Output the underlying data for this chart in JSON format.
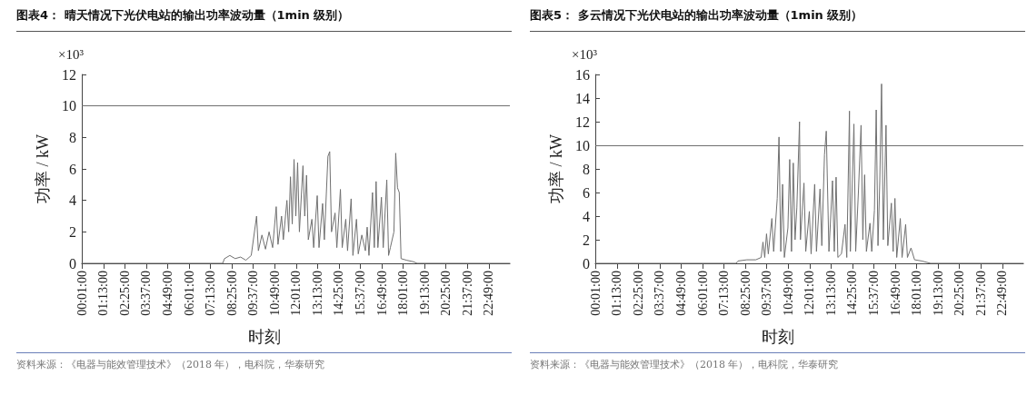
{
  "chart_data": [
    {
      "type": "line",
      "title": "图表4： 晴天情况下光伏电站的输出功率波动量（1min 级别）",
      "xlabel": "时刻",
      "ylabel": "功率 / kW",
      "annotations": [
        "×10³",
        "资料来源：《电器与能效管理技术》（2018 年），电科院，华泰研究"
      ],
      "x": [
        0,
        7.9,
        8.0,
        8.3,
        8.6,
        8.9,
        9.2,
        9.5,
        9.8,
        9.9,
        10.1,
        10.3,
        10.5,
        10.7,
        10.9,
        11.0,
        11.2,
        11.3,
        11.5,
        11.6,
        11.7,
        11.8,
        11.9,
        12.0,
        12.1,
        12.2,
        12.4,
        12.5,
        12.6,
        12.7,
        12.9,
        13.0,
        13.2,
        13.3,
        13.5,
        13.6,
        13.8,
        13.9,
        14.0,
        14.2,
        14.3,
        14.5,
        14.6,
        14.8,
        14.9,
        15.1,
        15.2,
        15.4,
        15.5,
        15.7,
        15.9,
        16.0,
        16.1,
        16.3,
        16.4,
        16.5,
        16.6,
        16.8,
        16.9,
        17.1,
        17.2,
        17.3,
        17.5,
        17.6,
        17.7,
        17.8,
        17.9,
        18.2,
        18.6,
        18.8,
        24
      ],
      "series": [
        {
          "color": "#707070",
          "values": [
            0,
            0,
            0.3,
            0.5,
            0.3,
            0.4,
            0.2,
            0.5,
            3.0,
            0.8,
            1.8,
            0.9,
            2.0,
            1.0,
            3.6,
            1.2,
            3.0,
            1.5,
            4.0,
            2.0,
            5.5,
            2.5,
            6.6,
            3.0,
            6.4,
            2.0,
            6.2,
            3.0,
            5.6,
            1.5,
            2.8,
            1.0,
            4.3,
            1.0,
            3.8,
            1.5,
            6.8,
            7.1,
            2.0,
            3.2,
            1.0,
            4.7,
            1.0,
            2.8,
            0.8,
            4.1,
            0.5,
            2.8,
            0.6,
            1.8,
            0.8,
            2.3,
            0.5,
            4.5,
            1.0,
            5.2,
            1.0,
            4.2,
            1.0,
            5.3,
            0.5,
            1.0,
            2.0,
            7.0,
            4.8,
            4.5,
            0.3,
            0.2,
            0.1,
            0,
            0
          ]
        }
      ],
      "xlim": [
        0,
        24
      ],
      "xticks": [
        {
          "value": 0.0167,
          "label": "00:01:00"
        },
        {
          "value": 1.2167,
          "label": "01:13:00"
        },
        {
          "value": 2.4167,
          "label": "02:25:00"
        },
        {
          "value": 3.6167,
          "label": "03:37:00"
        },
        {
          "value": 4.8167,
          "label": "04:49:00"
        },
        {
          "value": 6.0167,
          "label": "06:01:00"
        },
        {
          "value": 7.2167,
          "label": "07:13:00"
        },
        {
          "value": 8.4167,
          "label": "08:25:00"
        },
        {
          "value": 9.6167,
          "label": "09:37:00"
        },
        {
          "value": 10.8167,
          "label": "10:49:00"
        },
        {
          "value": 12.0167,
          "label": "12:01:00"
        },
        {
          "value": 13.2167,
          "label": "13:13:00"
        },
        {
          "value": 14.4167,
          "label": "14:25:00"
        },
        {
          "value": 15.6167,
          "label": "15:37:00"
        },
        {
          "value": 16.8167,
          "label": "16:49:00"
        },
        {
          "value": 18.0167,
          "label": "18:01:00"
        },
        {
          "value": 19.2167,
          "label": "19:13:00"
        },
        {
          "value": 20.4167,
          "label": "20:25:00"
        },
        {
          "value": 21.6167,
          "label": "21:37:00"
        },
        {
          "value": 22.8167,
          "label": "22:49:00"
        }
      ],
      "ylim": [
        0,
        12
      ],
      "yticks": [
        0,
        2,
        4,
        6,
        8,
        10,
        12
      ],
      "ref_lines": [
        {
          "axis": "y",
          "value": 10,
          "color": "#707070"
        }
      ],
      "grid": false,
      "marker": "none",
      "line_style": "solid"
    },
    {
      "type": "line",
      "title": "图表5： 多云情况下光伏电站的输出功率波动量（1min 级别）",
      "xlabel": "时刻",
      "ylabel": "功率 / kW",
      "annotations": [
        "×10³",
        "资料来源：《电器与能效管理技术》（2018 年），电科院，华泰研究"
      ],
      "x": [
        0,
        7.9,
        8.0,
        8.5,
        9.0,
        9.3,
        9.4,
        9.5,
        9.6,
        9.7,
        9.9,
        10.0,
        10.2,
        10.3,
        10.4,
        10.5,
        10.6,
        10.8,
        10.9,
        11.0,
        11.1,
        11.2,
        11.3,
        11.45,
        11.5,
        11.7,
        11.8,
        12.0,
        12.1,
        12.3,
        12.4,
        12.6,
        12.7,
        12.85,
        12.95,
        13.1,
        13.3,
        13.4,
        13.5,
        13.6,
        13.8,
        14.0,
        14.1,
        14.25,
        14.3,
        14.5,
        14.6,
        14.75,
        14.9,
        15.0,
        15.1,
        15.2,
        15.4,
        15.5,
        15.65,
        15.75,
        15.85,
        15.95,
        16.05,
        16.15,
        16.3,
        16.4,
        16.6,
        16.7,
        16.8,
        16.9,
        17.1,
        17.2,
        17.4,
        17.5,
        17.7,
        17.9,
        18.3,
        18.8,
        24
      ],
      "series": [
        {
          "color": "#707070",
          "values": [
            0,
            0,
            0.2,
            0.3,
            0.3,
            0.5,
            1.8,
            0.5,
            2.5,
            0.8,
            3.8,
            1.0,
            5.5,
            10.7,
            1.0,
            6.7,
            0.5,
            3.0,
            8.8,
            1.0,
            8.5,
            2.0,
            4.7,
            12.0,
            2.0,
            6.8,
            1.0,
            4.4,
            0.8,
            6.7,
            1.0,
            6.3,
            1.5,
            9.2,
            11.2,
            1.0,
            7.0,
            1.0,
            7.3,
            0.5,
            0.8,
            3.3,
            0.5,
            12.9,
            1.0,
            11.8,
            1.0,
            6.0,
            11.7,
            2.0,
            7.5,
            1.0,
            3.4,
            1.0,
            4.5,
            13.0,
            1.5,
            7.0,
            15.2,
            2.0,
            11.7,
            1.5,
            5.1,
            1.0,
            5.5,
            0.5,
            3.8,
            0.5,
            3.3,
            0.5,
            1.3,
            0.3,
            0.2,
            0,
            0
          ]
        }
      ],
      "xlim": [
        0,
        24
      ],
      "xticks": [
        {
          "value": 0.0167,
          "label": "00:01:00"
        },
        {
          "value": 1.2167,
          "label": "01:13:00"
        },
        {
          "value": 2.4167,
          "label": "02:25:00"
        },
        {
          "value": 3.6167,
          "label": "03:37:00"
        },
        {
          "value": 4.8167,
          "label": "04:49:00"
        },
        {
          "value": 6.0167,
          "label": "06:01:00"
        },
        {
          "value": 7.2167,
          "label": "07:13:00"
        },
        {
          "value": 8.4167,
          "label": "08:25:00"
        },
        {
          "value": 9.6167,
          "label": "09:37:00"
        },
        {
          "value": 10.8167,
          "label": "10:49:00"
        },
        {
          "value": 12.0167,
          "label": "12:01:00"
        },
        {
          "value": 13.2167,
          "label": "13:13:00"
        },
        {
          "value": 14.4167,
          "label": "14:25:00"
        },
        {
          "value": 15.6167,
          "label": "15:37:00"
        },
        {
          "value": 16.8167,
          "label": "16:49:00"
        },
        {
          "value": 18.0167,
          "label": "18:01:00"
        },
        {
          "value": 19.2167,
          "label": "19:13:00"
        },
        {
          "value": 20.4167,
          "label": "20:25:00"
        },
        {
          "value": 21.6167,
          "label": "21:37:00"
        },
        {
          "value": 22.8167,
          "label": "22:49:00"
        }
      ],
      "ylim": [
        0,
        16
      ],
      "yticks": [
        0,
        2,
        4,
        6,
        8,
        10,
        12,
        14,
        16
      ],
      "ref_lines": [
        {
          "axis": "y",
          "value": 10,
          "color": "#707070"
        }
      ],
      "grid": false,
      "marker": "none",
      "line_style": "solid"
    }
  ]
}
